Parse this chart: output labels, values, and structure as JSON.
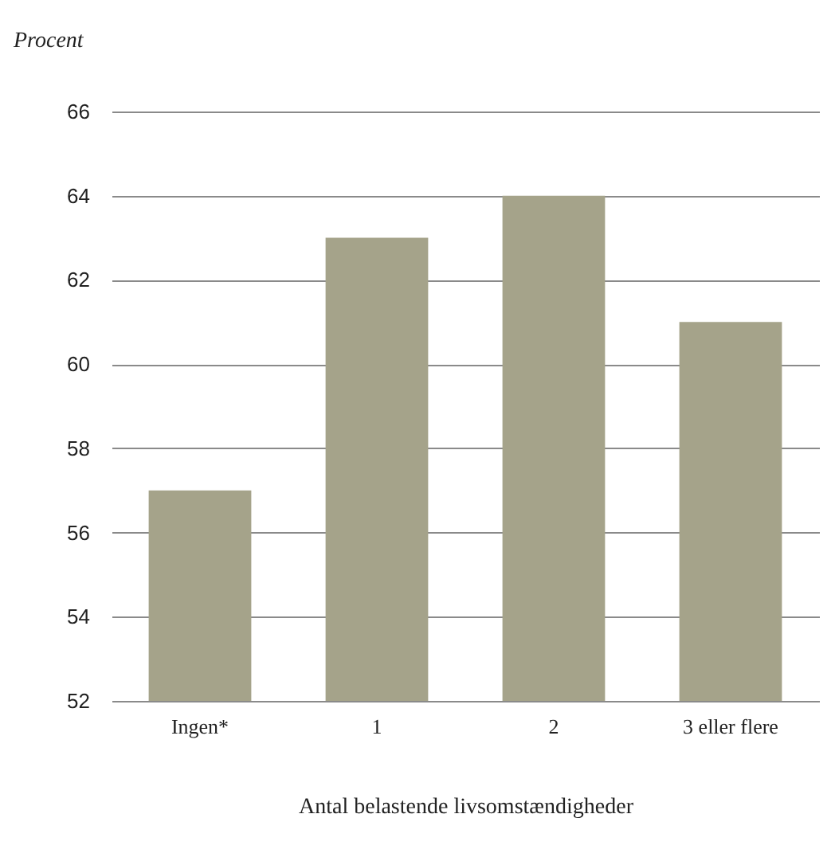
{
  "chart_data": {
    "type": "bar",
    "ylabel": "Procent",
    "xlabel": "Antal belastende livsomstændigheder",
    "categories": [
      "Ingen*",
      "1",
      "2",
      "3 eller flere"
    ],
    "values": [
      57,
      63,
      64,
      61
    ],
    "color": "#a5a38a",
    "ylim": [
      52,
      66
    ],
    "yticks": [
      52,
      54,
      56,
      58,
      60,
      62,
      64,
      66
    ],
    "grid": "y"
  }
}
